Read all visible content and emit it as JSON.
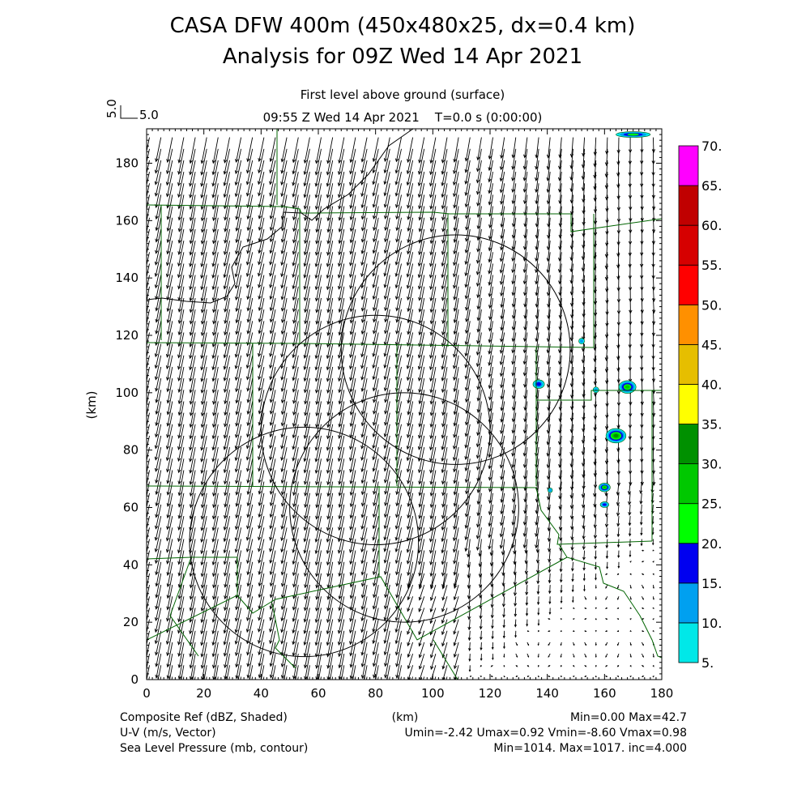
{
  "title_line1": "CASA DFW 400m (450x480x25, dx=0.4 km)",
  "title_line2": "Analysis for 09Z Wed 14 Apr 2021",
  "subtitle_level": "First level above ground (surface)",
  "subtitle_time": "09:55 Z Wed 14 Apr 2021    T=0.0 s (0:00:00)",
  "ref_vector": {
    "label": "5.0",
    "label_rot": "5.0",
    "value": 5.0
  },
  "footer": {
    "left1": "Composite Ref (dBZ, Shaded)",
    "left2": "U-V (m/s, Vector)",
    "left3": "Sea Level Pressure (mb, contour)",
    "center1": "(km)",
    "right1": "Min=0.00 Max=42.7",
    "right2": "Umin=-2.42 Umax=0.92 Vmin=-8.60 Vmax=0.98",
    "right3": "Min=1014. Max=1017. inc=4.000"
  },
  "chart_data": {
    "type": "heatmap",
    "title": "CASA DFW 400m (450x480x25, dx=0.4 km)",
    "xlabel": "(km)",
    "ylabel": "(km)",
    "xlim": [
      0,
      180
    ],
    "ylim": [
      0,
      192
    ],
    "xticks": [
      "0",
      "20",
      "40",
      "60",
      "80",
      "100",
      "120",
      "140",
      "160",
      "180"
    ],
    "yticks": [
      "0",
      "20",
      "40",
      "60",
      "80",
      "100",
      "120",
      "140",
      "160",
      "180"
    ],
    "colorbar": {
      "levels": [
        "5.",
        "10.",
        "15.",
        "20.",
        "25.",
        "30.",
        "35.",
        "40.",
        "45.",
        "50.",
        "55.",
        "60.",
        "65.",
        "70."
      ],
      "colors": [
        "#00e8e8",
        "#00a0f0",
        "#0000f0",
        "#00ff00",
        "#00c800",
        "#009000",
        "#ffff00",
        "#e6be00",
        "#ff9000",
        "#ff0000",
        "#d60000",
        "#c00000",
        "#ff00ff"
      ]
    },
    "radar_rings": [
      {
        "cx": 55,
        "cy": 48,
        "r": 40
      },
      {
        "cx": 80,
        "cy": 87,
        "r": 40
      },
      {
        "cx": 90,
        "cy": 60,
        "r": 40
      },
      {
        "cx": 108,
        "cy": 115,
        "r": 40
      }
    ],
    "echoes": [
      {
        "x": 137,
        "y": 103,
        "rx": 2,
        "ry": 1.5,
        "dbz": 15
      },
      {
        "x": 152,
        "y": 118,
        "rx": 1,
        "ry": 1,
        "dbz": 10
      },
      {
        "x": 157,
        "y": 101,
        "rx": 1,
        "ry": 1,
        "dbz": 10
      },
      {
        "x": 168,
        "y": 102,
        "rx": 3,
        "ry": 2.2,
        "dbz": 25
      },
      {
        "x": 164,
        "y": 85,
        "rx": 3.5,
        "ry": 2.5,
        "dbz": 30
      },
      {
        "x": 160,
        "y": 67,
        "rx": 2,
        "ry": 1.5,
        "dbz": 25
      },
      {
        "x": 160,
        "y": 61,
        "rx": 1.5,
        "ry": 1,
        "dbz": 15
      },
      {
        "x": 141,
        "y": 66,
        "rx": 0.8,
        "ry": 0.8,
        "dbz": 10
      },
      {
        "x": 170,
        "y": 190,
        "rx": 6,
        "ry": 1,
        "dbz": 20
      }
    ],
    "wind": {
      "u_range": [
        -2.42,
        0.92
      ],
      "v_range": [
        -8.6,
        0.98
      ],
      "unit": "m/s",
      "spacing_km": 4
    }
  }
}
